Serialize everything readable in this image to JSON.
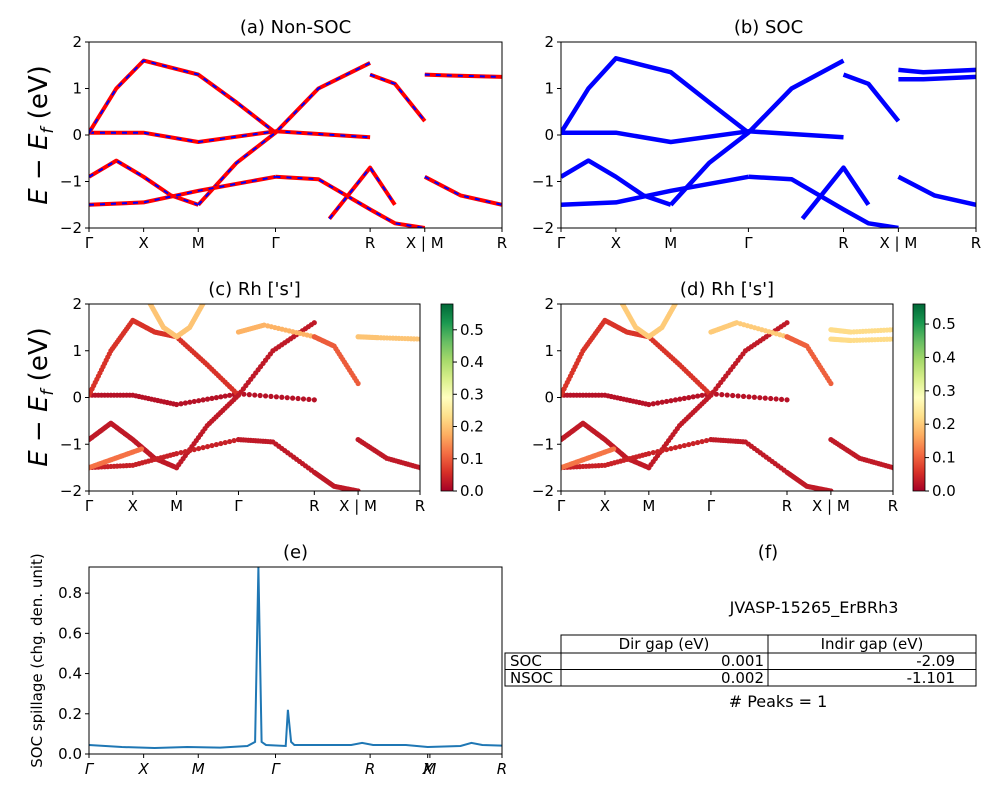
{
  "figure": {
    "material": "JVASP-15265_ErBRh3",
    "band_ylabel_tex": "E − E_f (eV)",
    "kpath_labels": [
      "Γ",
      "X",
      "M",
      "Γ",
      "R",
      "X | M",
      "R"
    ],
    "kpath_labels_e": [
      "Γ",
      "X",
      "M",
      "Γ",
      "R",
      "X",
      "M",
      "R"
    ]
  },
  "chart_data": [
    {
      "id": "a",
      "type": "line",
      "title": "(a) Non-SOC",
      "ylim": [
        -2,
        2
      ],
      "yticks": [
        "−2",
        "−1",
        "0",
        "1",
        "2"
      ],
      "x_ticks": [
        "Γ",
        "X",
        "M",
        "Γ",
        "R",
        "X | M",
        "R"
      ],
      "x_tick_pos": [
        0,
        0.5,
        1.0,
        1.707,
        2.573,
        3.073,
        3.78
      ],
      "colors": {
        "nonsoc": "#ff0000",
        "soc_dash": "#0000ff"
      },
      "series": [
        {
          "x": [
            0,
            0.5,
            1.0,
            1.707,
            2.573
          ],
          "y": [
            0.05,
            0.05,
            -0.15,
            0.08,
            -0.05
          ]
        },
        {
          "x": [
            0,
            0.25,
            0.5,
            0.75,
            1.0,
            1.35,
            1.707
          ],
          "y": [
            0.05,
            1.0,
            1.6,
            1.45,
            1.3,
            0.7,
            0.05
          ]
        },
        {
          "x": [
            0,
            0.25,
            0.5,
            0.75,
            1.0
          ],
          "y": [
            -0.9,
            -0.55,
            -0.9,
            -1.3,
            -1.5
          ]
        },
        {
          "x": [
            1.0,
            1.35,
            1.707,
            2.1,
            2.573
          ],
          "y": [
            -1.5,
            -0.6,
            0.05,
            1.0,
            1.55
          ]
        },
        {
          "x": [
            0,
            0.5,
            1.0,
            1.707
          ],
          "y": [
            -1.5,
            -1.45,
            -1.2,
            -0.9
          ]
        },
        {
          "x": [
            1.707,
            2.1,
            2.573,
            2.8,
            3.073
          ],
          "y": [
            -0.9,
            -0.95,
            -1.6,
            -1.9,
            -2.0
          ]
        },
        {
          "x": [
            2.573,
            2.8,
            3.073
          ],
          "y": [
            1.3,
            1.1,
            0.3
          ]
        },
        {
          "x": [
            3.073,
            3.3,
            3.78
          ],
          "y": [
            1.3,
            1.28,
            1.25
          ]
        },
        {
          "x": [
            3.073,
            3.4,
            3.78
          ],
          "y": [
            -0.9,
            -1.3,
            -1.5
          ]
        },
        {
          "x": [
            2.2,
            2.573,
            2.8
          ],
          "y": [
            -1.8,
            -0.7,
            -1.5
          ]
        }
      ]
    },
    {
      "id": "b",
      "type": "line",
      "title": "(b) SOC",
      "ylim": [
        -2,
        2
      ],
      "yticks": [
        "−2",
        "−1",
        "0",
        "1",
        "2"
      ],
      "x_ticks": [
        "Γ",
        "X",
        "M",
        "Γ",
        "R",
        "X | M",
        "R"
      ],
      "x_tick_pos": [
        0,
        0.5,
        1.0,
        1.707,
        2.573,
        3.073,
        3.78
      ],
      "colors": {
        "soc": "#0000ff"
      },
      "series": [
        {
          "x": [
            0,
            0.5,
            1.0,
            1.707,
            2.573
          ],
          "y": [
            0.05,
            0.05,
            -0.15,
            0.08,
            -0.05
          ]
        },
        {
          "x": [
            0,
            0.25,
            0.5,
            0.75,
            1.0,
            1.35,
            1.707
          ],
          "y": [
            0.05,
            1.0,
            1.65,
            1.5,
            1.35,
            0.7,
            0.05
          ]
        },
        {
          "x": [
            0,
            0.25,
            0.5,
            0.75,
            1.0
          ],
          "y": [
            -0.9,
            -0.55,
            -0.9,
            -1.3,
            -1.5
          ]
        },
        {
          "x": [
            1.0,
            1.35,
            1.707,
            2.1,
            2.573
          ],
          "y": [
            -1.5,
            -0.6,
            0.05,
            1.0,
            1.6
          ]
        },
        {
          "x": [
            0,
            0.5,
            1.0,
            1.707
          ],
          "y": [
            -1.5,
            -1.45,
            -1.2,
            -0.9
          ]
        },
        {
          "x": [
            1.707,
            2.1,
            2.573,
            2.8,
            3.073
          ],
          "y": [
            -0.9,
            -0.95,
            -1.6,
            -1.9,
            -2.0
          ]
        },
        {
          "x": [
            2.573,
            2.8,
            3.073
          ],
          "y": [
            1.3,
            1.1,
            0.3
          ]
        },
        {
          "x": [
            3.073,
            3.3,
            3.78
          ],
          "y": [
            1.4,
            1.35,
            1.4
          ]
        },
        {
          "x": [
            3.073,
            3.3,
            3.78
          ],
          "y": [
            1.2,
            1.2,
            1.25
          ]
        },
        {
          "x": [
            3.073,
            3.4,
            3.78
          ],
          "y": [
            -0.9,
            -1.3,
            -1.5
          ]
        },
        {
          "x": [
            2.2,
            2.573,
            2.8
          ],
          "y": [
            -1.8,
            -0.7,
            -1.5
          ]
        }
      ]
    },
    {
      "id": "c",
      "type": "scatter",
      "title": "(c)  Rh ['s']",
      "ylim": [
        -2,
        2
      ],
      "yticks": [
        "−2",
        "−1",
        "0",
        "1",
        "2"
      ],
      "x_ticks": [
        "Γ",
        "X",
        "M",
        "Γ",
        "R",
        "X | M",
        "R"
      ],
      "x_tick_pos": [
        0,
        0.5,
        1.0,
        1.707,
        2.573,
        3.073,
        3.78
      ],
      "colorbar": {
        "min": 0.0,
        "max": 0.58,
        "ticks": [
          "0.0",
          "0.1",
          "0.2",
          "0.3",
          "0.4",
          "0.5"
        ],
        "colormap": "RdYlGn"
      },
      "series": [
        {
          "x": [
            0,
            0.5,
            1.0,
            1.707,
            2.573
          ],
          "y": [
            0.05,
            0.05,
            -0.15,
            0.08,
            -0.05
          ],
          "w": 0.02
        },
        {
          "x": [
            0,
            0.25,
            0.5,
            0.75,
            1.0,
            1.35,
            1.707
          ],
          "y": [
            0.05,
            1.0,
            1.65,
            1.4,
            1.3,
            0.7,
            0.05
          ],
          "w": 0.06
        },
        {
          "x": [
            0.7,
            0.85,
            1.0,
            1.15,
            1.3
          ],
          "y": [
            2.0,
            1.5,
            1.3,
            1.5,
            2.0
          ],
          "w": 0.2
        },
        {
          "x": [
            0,
            0.25,
            0.5,
            0.75,
            1.0
          ],
          "y": [
            -0.9,
            -0.55,
            -0.9,
            -1.3,
            -1.5
          ],
          "w": 0.03
        },
        {
          "x": [
            1.0,
            1.35,
            1.707,
            2.1,
            2.573
          ],
          "y": [
            -1.5,
            -0.6,
            0.05,
            1.0,
            1.6
          ],
          "w": 0.03
        },
        {
          "x": [
            1.707,
            2.0,
            2.573
          ],
          "y": [
            1.4,
            1.55,
            1.3
          ],
          "w": 0.18
        },
        {
          "x": [
            0,
            0.5,
            1.0,
            1.707
          ],
          "y": [
            -1.5,
            -1.45,
            -1.2,
            -0.9
          ],
          "w": 0.04
        },
        {
          "x": [
            1.707,
            2.1,
            2.573,
            2.8,
            3.073
          ],
          "y": [
            -0.9,
            -0.95,
            -1.6,
            -1.9,
            -2.0
          ],
          "w": 0.03
        },
        {
          "x": [
            2.573,
            2.8,
            3.073
          ],
          "y": [
            1.3,
            1.1,
            0.3
          ],
          "w": 0.1
        },
        {
          "x": [
            3.073,
            3.3,
            3.78
          ],
          "y": [
            1.3,
            1.28,
            1.25
          ],
          "w": 0.2
        },
        {
          "x": [
            3.073,
            3.4,
            3.78
          ],
          "y": [
            -0.9,
            -1.3,
            -1.5
          ],
          "w": 0.03
        },
        {
          "x": [
            0,
            0.3,
            0.6
          ],
          "y": [
            -1.5,
            -1.3,
            -1.1
          ],
          "w": 0.12
        }
      ]
    },
    {
      "id": "d",
      "type": "scatter",
      "title": "(d) Rh ['s']",
      "ylim": [
        -2,
        2
      ],
      "yticks": [
        "−2",
        "−1",
        "0",
        "1",
        "2"
      ],
      "x_ticks": [
        "Γ",
        "X",
        "M",
        "Γ",
        "R",
        "X | M",
        "R"
      ],
      "x_tick_pos": [
        0,
        0.5,
        1.0,
        1.707,
        2.573,
        3.073,
        3.78
      ],
      "colorbar": {
        "min": 0.0,
        "max": 0.56,
        "ticks": [
          "0.0",
          "0.1",
          "0.2",
          "0.3",
          "0.4",
          "0.5"
        ],
        "colormap": "RdYlGn"
      },
      "series": [
        {
          "x": [
            0,
            0.5,
            1.0,
            1.707,
            2.573
          ],
          "y": [
            0.05,
            0.05,
            -0.15,
            0.08,
            -0.05
          ],
          "w": 0.02
        },
        {
          "x": [
            0,
            0.25,
            0.5,
            0.75,
            1.0,
            1.35,
            1.707
          ],
          "y": [
            0.05,
            1.0,
            1.65,
            1.4,
            1.3,
            0.7,
            0.05
          ],
          "w": 0.06
        },
        {
          "x": [
            0.7,
            0.85,
            1.0,
            1.15,
            1.3
          ],
          "y": [
            2.0,
            1.5,
            1.3,
            1.5,
            2.0
          ],
          "w": 0.2
        },
        {
          "x": [
            0,
            0.25,
            0.5,
            0.75,
            1.0
          ],
          "y": [
            -0.9,
            -0.55,
            -0.9,
            -1.3,
            -1.5
          ],
          "w": 0.03
        },
        {
          "x": [
            1.0,
            1.35,
            1.707,
            2.1,
            2.573
          ],
          "y": [
            -1.5,
            -0.6,
            0.05,
            1.0,
            1.6
          ],
          "w": 0.03
        },
        {
          "x": [
            1.707,
            2.0,
            2.573
          ],
          "y": [
            1.4,
            1.6,
            1.3
          ],
          "w": 0.2
        },
        {
          "x": [
            0,
            0.5,
            1.0,
            1.707
          ],
          "y": [
            -1.5,
            -1.45,
            -1.2,
            -0.9
          ],
          "w": 0.04
        },
        {
          "x": [
            1.707,
            2.1,
            2.573,
            2.8,
            3.073
          ],
          "y": [
            -0.9,
            -0.95,
            -1.6,
            -1.9,
            -2.0
          ],
          "w": 0.03
        },
        {
          "x": [
            2.573,
            2.8,
            3.073
          ],
          "y": [
            1.3,
            1.1,
            0.3
          ],
          "w": 0.1
        },
        {
          "x": [
            3.073,
            3.3,
            3.78
          ],
          "y": [
            1.45,
            1.4,
            1.45
          ],
          "w": 0.22
        },
        {
          "x": [
            3.073,
            3.3,
            3.78
          ],
          "y": [
            1.25,
            1.22,
            1.25
          ],
          "w": 0.22
        },
        {
          "x": [
            3.073,
            3.4,
            3.78
          ],
          "y": [
            -0.9,
            -1.3,
            -1.5
          ],
          "w": 0.03
        },
        {
          "x": [
            0,
            0.3,
            0.6
          ],
          "y": [
            -1.5,
            -1.3,
            -1.1
          ],
          "w": 0.12
        }
      ]
    },
    {
      "id": "e",
      "type": "line",
      "title": "(e)",
      "ylabel": "SOC spillage (chg. den. unit)",
      "ylim": [
        0,
        0.93
      ],
      "yticks": [
        "0.0",
        "0.2",
        "0.4",
        "0.6",
        "0.8"
      ],
      "x_ticks": [
        "Γ",
        "X",
        "M",
        "Γ",
        "R",
        "X",
        "M",
        "R"
      ],
      "x_tick_pos": [
        0,
        0.5,
        1.0,
        1.707,
        2.573,
        3.1,
        3.12,
        3.78
      ],
      "color": "#1f77b4",
      "x": [
        0,
        0.3,
        0.6,
        0.9,
        1.2,
        1.45,
        1.52,
        1.55,
        1.58,
        1.62,
        1.8,
        1.82,
        1.85,
        1.88,
        2.0,
        2.4,
        2.5,
        2.6,
        2.9,
        3.1,
        3.4,
        3.5,
        3.6,
        3.78
      ],
      "y": [
        0.045,
        0.035,
        0.03,
        0.035,
        0.032,
        0.04,
        0.06,
        0.93,
        0.06,
        0.045,
        0.04,
        0.22,
        0.06,
        0.045,
        0.045,
        0.045,
        0.055,
        0.045,
        0.045,
        0.035,
        0.04,
        0.055,
        0.045,
        0.042
      ]
    }
  ],
  "panel_f": {
    "title": "(f)",
    "material": "JVASP-15265_ErBRh3",
    "table": {
      "headers": [
        "",
        "Dir gap (eV)",
        "Indir gap (eV)"
      ],
      "rows": [
        [
          "SOC",
          "0.001",
          "-2.09"
        ],
        [
          "NSOC",
          "0.002",
          "-1.101"
        ]
      ]
    },
    "peaks_text": "# Peaks = 1"
  }
}
